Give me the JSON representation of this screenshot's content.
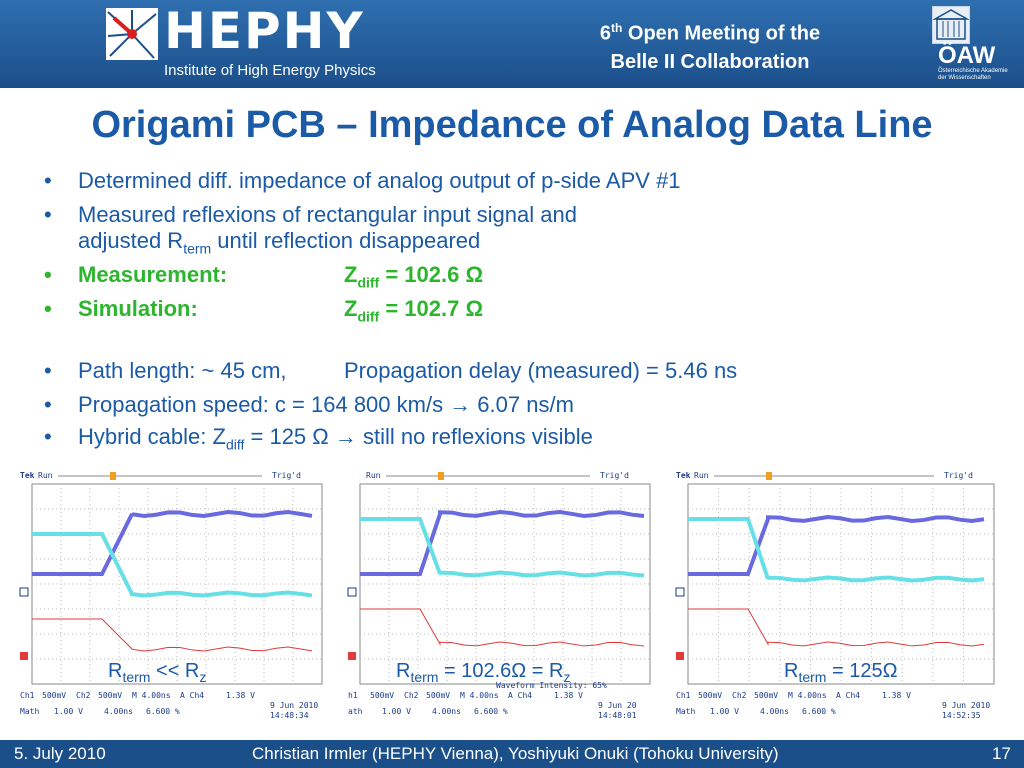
{
  "header": {
    "logo_text": "HEPHY",
    "logo_subtitle": "Institute of High Energy Physics",
    "meeting_ordinal": "6",
    "meeting_sup": "th",
    "meeting_line1_rest": " Open Meeting of the",
    "meeting_line2": "Belle II Collaboration",
    "oaw_text": "ÖAW",
    "oaw_subtitle": "Österreichische Akademie der Wissenschaften"
  },
  "title": "Origami PCB – Impedance of Analog Data Line",
  "bullets": {
    "b1": "Determined diff. impedance of analog output of p-side APV #1",
    "b2_line1": "Measured reflexions of rectangular input signal and",
    "b2_line2_pre": "adjusted R",
    "b2_line2_sub": "term",
    "b2_line2_post": " until reflection disappeared",
    "b3_label": "Measurement:",
    "b3_z": "Z",
    "b3_sub": "diff",
    "b3_value": " = 102.6 Ω",
    "b4_label": "Simulation:",
    "b4_z": "Z",
    "b4_sub": "diff",
    "b4_value": " = 102.7 Ω",
    "b5_part1": "Path length: ~ 45 cm,",
    "b5_part2": "Propagation delay (measured) = 5.46 ns",
    "b6": "Propagation speed: c = 164 800 km/s → 6.07 ns/m",
    "b7_pre": "Hybrid cable: Z",
    "b7_sub": "diff",
    "b7_post": " = 125 Ω → still no reflexions visible"
  },
  "scopes": [
    {
      "brand": "Tek",
      "run": "Run",
      "trig": "Trig'd",
      "ch1": "Ch1",
      "ch1_scale": "500mV",
      "ch2": "Ch2",
      "ch2_scale": "500mV",
      "time": "M 4.00ns",
      "a_ch": "A Ch4",
      "trig_level": "1.38 V",
      "math": "Math",
      "math_scale": "1.00 V",
      "math_time": "4.00ns",
      "pct": "6.600 %",
      "date": "9 Jun 2010",
      "clock": "14:48:34",
      "caption_pre": "R",
      "caption_sub": "term",
      "caption_mid": " << R",
      "caption_sub2": "z",
      "caption_post": ""
    },
    {
      "brand": "",
      "run": "Run",
      "trig": "Trig'd",
      "ch1": "h1",
      "ch1_scale": "500mV",
      "ch2": "Ch2",
      "ch2_scale": "500mV",
      "time": "M 4.00ns",
      "a_ch": "A Ch4",
      "trig_level": "1.38 V",
      "math": "ath",
      "math_scale": "1.00 V",
      "math_time": "4.00ns",
      "pct": "6.600 %",
      "date": "9 Jun 20",
      "clock": "14:48:01",
      "waveform": "Waveform Intensity: 65%",
      "caption_pre": "R",
      "caption_sub": "term",
      "caption_mid": " = 102.6Ω = R",
      "caption_sub2": "z",
      "caption_post": ""
    },
    {
      "brand": "Tek",
      "run": "Run",
      "trig": "Trig'd",
      "ch1": "Ch1",
      "ch1_scale": "500mV",
      "ch2": "Ch2",
      "ch2_scale": "500mV",
      "time": "M 4.00ns",
      "a_ch": "A Ch4",
      "trig_level": "1.38 V",
      "math": "Math",
      "math_scale": "1.00 V",
      "math_time": "4.00ns",
      "pct": "6.600 %",
      "date": "9 Jun 2010",
      "clock": "14:52:35",
      "caption_pre": "R",
      "caption_sub": "term",
      "caption_mid": " = 125Ω",
      "caption_sub2": "",
      "caption_post": ""
    }
  ],
  "footer": {
    "date": "5. July 2010",
    "authors": "Christian Irmler (HEPHY Vienna), Yoshiyuki Onuki (Tohoku University)",
    "page": "17"
  },
  "colors": {
    "header_blue": "#1b4f8a",
    "title_blue": "#1a5aa6",
    "highlight_green": "#2db52d",
    "trace_ch1": "#6a6ae0",
    "trace_ch2": "#66e0e6",
    "trace_math": "#e03a3a"
  }
}
